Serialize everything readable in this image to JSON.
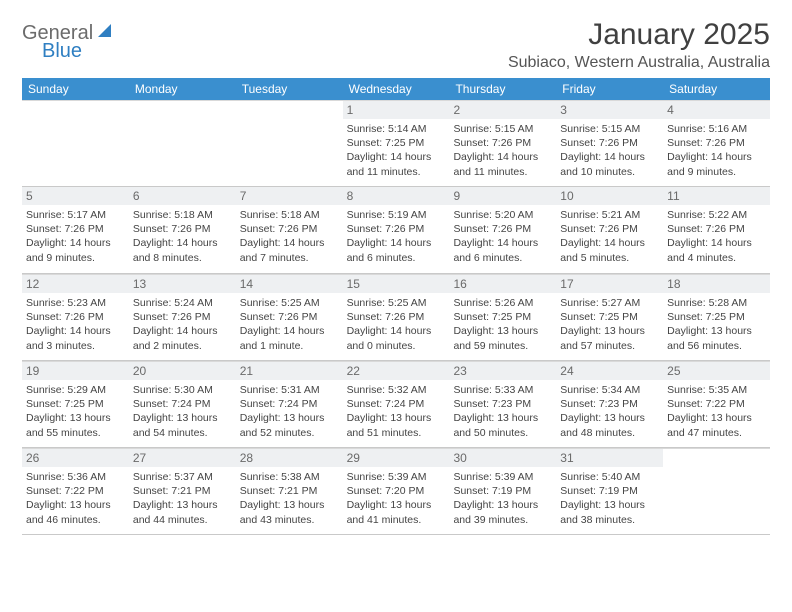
{
  "logo": {
    "part1": "General",
    "part2": "Blue"
  },
  "title": "January 2025",
  "location": "Subiaco, Western Australia, Australia",
  "header_bg": "#3a8fcf",
  "daynum_bg": "#eef0f2",
  "border_color": "#c9c9c9",
  "text_color": "#444444",
  "weekdays": [
    "Sunday",
    "Monday",
    "Tuesday",
    "Wednesday",
    "Thursday",
    "Friday",
    "Saturday"
  ],
  "weeks": [
    [
      {
        "n": "",
        "l1": "",
        "l2": "",
        "l3": "",
        "l4": ""
      },
      {
        "n": "",
        "l1": "",
        "l2": "",
        "l3": "",
        "l4": ""
      },
      {
        "n": "",
        "l1": "",
        "l2": "",
        "l3": "",
        "l4": ""
      },
      {
        "n": "1",
        "l1": "Sunrise: 5:14 AM",
        "l2": "Sunset: 7:25 PM",
        "l3": "Daylight: 14 hours",
        "l4": "and 11 minutes."
      },
      {
        "n": "2",
        "l1": "Sunrise: 5:15 AM",
        "l2": "Sunset: 7:26 PM",
        "l3": "Daylight: 14 hours",
        "l4": "and 11 minutes."
      },
      {
        "n": "3",
        "l1": "Sunrise: 5:15 AM",
        "l2": "Sunset: 7:26 PM",
        "l3": "Daylight: 14 hours",
        "l4": "and 10 minutes."
      },
      {
        "n": "4",
        "l1": "Sunrise: 5:16 AM",
        "l2": "Sunset: 7:26 PM",
        "l3": "Daylight: 14 hours",
        "l4": "and 9 minutes."
      }
    ],
    [
      {
        "n": "5",
        "l1": "Sunrise: 5:17 AM",
        "l2": "Sunset: 7:26 PM",
        "l3": "Daylight: 14 hours",
        "l4": "and 9 minutes."
      },
      {
        "n": "6",
        "l1": "Sunrise: 5:18 AM",
        "l2": "Sunset: 7:26 PM",
        "l3": "Daylight: 14 hours",
        "l4": "and 8 minutes."
      },
      {
        "n": "7",
        "l1": "Sunrise: 5:18 AM",
        "l2": "Sunset: 7:26 PM",
        "l3": "Daylight: 14 hours",
        "l4": "and 7 minutes."
      },
      {
        "n": "8",
        "l1": "Sunrise: 5:19 AM",
        "l2": "Sunset: 7:26 PM",
        "l3": "Daylight: 14 hours",
        "l4": "and 6 minutes."
      },
      {
        "n": "9",
        "l1": "Sunrise: 5:20 AM",
        "l2": "Sunset: 7:26 PM",
        "l3": "Daylight: 14 hours",
        "l4": "and 6 minutes."
      },
      {
        "n": "10",
        "l1": "Sunrise: 5:21 AM",
        "l2": "Sunset: 7:26 PM",
        "l3": "Daylight: 14 hours",
        "l4": "and 5 minutes."
      },
      {
        "n": "11",
        "l1": "Sunrise: 5:22 AM",
        "l2": "Sunset: 7:26 PM",
        "l3": "Daylight: 14 hours",
        "l4": "and 4 minutes."
      }
    ],
    [
      {
        "n": "12",
        "l1": "Sunrise: 5:23 AM",
        "l2": "Sunset: 7:26 PM",
        "l3": "Daylight: 14 hours",
        "l4": "and 3 minutes."
      },
      {
        "n": "13",
        "l1": "Sunrise: 5:24 AM",
        "l2": "Sunset: 7:26 PM",
        "l3": "Daylight: 14 hours",
        "l4": "and 2 minutes."
      },
      {
        "n": "14",
        "l1": "Sunrise: 5:25 AM",
        "l2": "Sunset: 7:26 PM",
        "l3": "Daylight: 14 hours",
        "l4": "and 1 minute."
      },
      {
        "n": "15",
        "l1": "Sunrise: 5:25 AM",
        "l2": "Sunset: 7:26 PM",
        "l3": "Daylight: 14 hours",
        "l4": "and 0 minutes."
      },
      {
        "n": "16",
        "l1": "Sunrise: 5:26 AM",
        "l2": "Sunset: 7:25 PM",
        "l3": "Daylight: 13 hours",
        "l4": "and 59 minutes."
      },
      {
        "n": "17",
        "l1": "Sunrise: 5:27 AM",
        "l2": "Sunset: 7:25 PM",
        "l3": "Daylight: 13 hours",
        "l4": "and 57 minutes."
      },
      {
        "n": "18",
        "l1": "Sunrise: 5:28 AM",
        "l2": "Sunset: 7:25 PM",
        "l3": "Daylight: 13 hours",
        "l4": "and 56 minutes."
      }
    ],
    [
      {
        "n": "19",
        "l1": "Sunrise: 5:29 AM",
        "l2": "Sunset: 7:25 PM",
        "l3": "Daylight: 13 hours",
        "l4": "and 55 minutes."
      },
      {
        "n": "20",
        "l1": "Sunrise: 5:30 AM",
        "l2": "Sunset: 7:24 PM",
        "l3": "Daylight: 13 hours",
        "l4": "and 54 minutes."
      },
      {
        "n": "21",
        "l1": "Sunrise: 5:31 AM",
        "l2": "Sunset: 7:24 PM",
        "l3": "Daylight: 13 hours",
        "l4": "and 52 minutes."
      },
      {
        "n": "22",
        "l1": "Sunrise: 5:32 AM",
        "l2": "Sunset: 7:24 PM",
        "l3": "Daylight: 13 hours",
        "l4": "and 51 minutes."
      },
      {
        "n": "23",
        "l1": "Sunrise: 5:33 AM",
        "l2": "Sunset: 7:23 PM",
        "l3": "Daylight: 13 hours",
        "l4": "and 50 minutes."
      },
      {
        "n": "24",
        "l1": "Sunrise: 5:34 AM",
        "l2": "Sunset: 7:23 PM",
        "l3": "Daylight: 13 hours",
        "l4": "and 48 minutes."
      },
      {
        "n": "25",
        "l1": "Sunrise: 5:35 AM",
        "l2": "Sunset: 7:22 PM",
        "l3": "Daylight: 13 hours",
        "l4": "and 47 minutes."
      }
    ],
    [
      {
        "n": "26",
        "l1": "Sunrise: 5:36 AM",
        "l2": "Sunset: 7:22 PM",
        "l3": "Daylight: 13 hours",
        "l4": "and 46 minutes."
      },
      {
        "n": "27",
        "l1": "Sunrise: 5:37 AM",
        "l2": "Sunset: 7:21 PM",
        "l3": "Daylight: 13 hours",
        "l4": "and 44 minutes."
      },
      {
        "n": "28",
        "l1": "Sunrise: 5:38 AM",
        "l2": "Sunset: 7:21 PM",
        "l3": "Daylight: 13 hours",
        "l4": "and 43 minutes."
      },
      {
        "n": "29",
        "l1": "Sunrise: 5:39 AM",
        "l2": "Sunset: 7:20 PM",
        "l3": "Daylight: 13 hours",
        "l4": "and 41 minutes."
      },
      {
        "n": "30",
        "l1": "Sunrise: 5:39 AM",
        "l2": "Sunset: 7:19 PM",
        "l3": "Daylight: 13 hours",
        "l4": "and 39 minutes."
      },
      {
        "n": "31",
        "l1": "Sunrise: 5:40 AM",
        "l2": "Sunset: 7:19 PM",
        "l3": "Daylight: 13 hours",
        "l4": "and 38 minutes."
      },
      {
        "n": "",
        "l1": "",
        "l2": "",
        "l3": "",
        "l4": ""
      }
    ]
  ]
}
